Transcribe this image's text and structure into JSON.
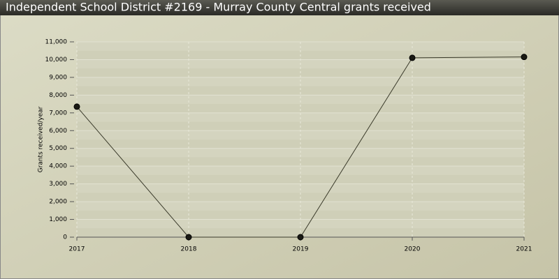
{
  "chart_data": {
    "type": "line",
    "title": "Independent School District #2169 - Murray County Central grants received",
    "y_label": "Grants received/year",
    "categories": [
      "2017",
      "2018",
      "2019",
      "2020",
      "2021"
    ],
    "series": [
      {
        "name": "Grants received/year",
        "color": "#3a3a2a",
        "values": [
          7350,
          0,
          0,
          10100,
          10150
        ]
      }
    ],
    "ylim": [
      0,
      11000
    ],
    "yticks": [
      0,
      {
        "value": 1000,
        "label": "1,000"
      },
      {
        "value": 2000,
        "label": "2,000"
      },
      {
        "value": 3000,
        "label": "3,000"
      },
      {
        "value": 4000,
        "label": "4,000"
      },
      {
        "value": 5000,
        "label": "5,000"
      },
      {
        "value": 6000,
        "label": "6,000"
      },
      {
        "value": 7000,
        "label": "7,000"
      },
      {
        "value": 8000,
        "label": "8,000"
      },
      {
        "value": 9000,
        "label": "9,000"
      },
      {
        "value": 10000,
        "label": "10,000"
      },
      {
        "value": 11000,
        "label": "11,000"
      }
    ],
    "grid": true
  }
}
